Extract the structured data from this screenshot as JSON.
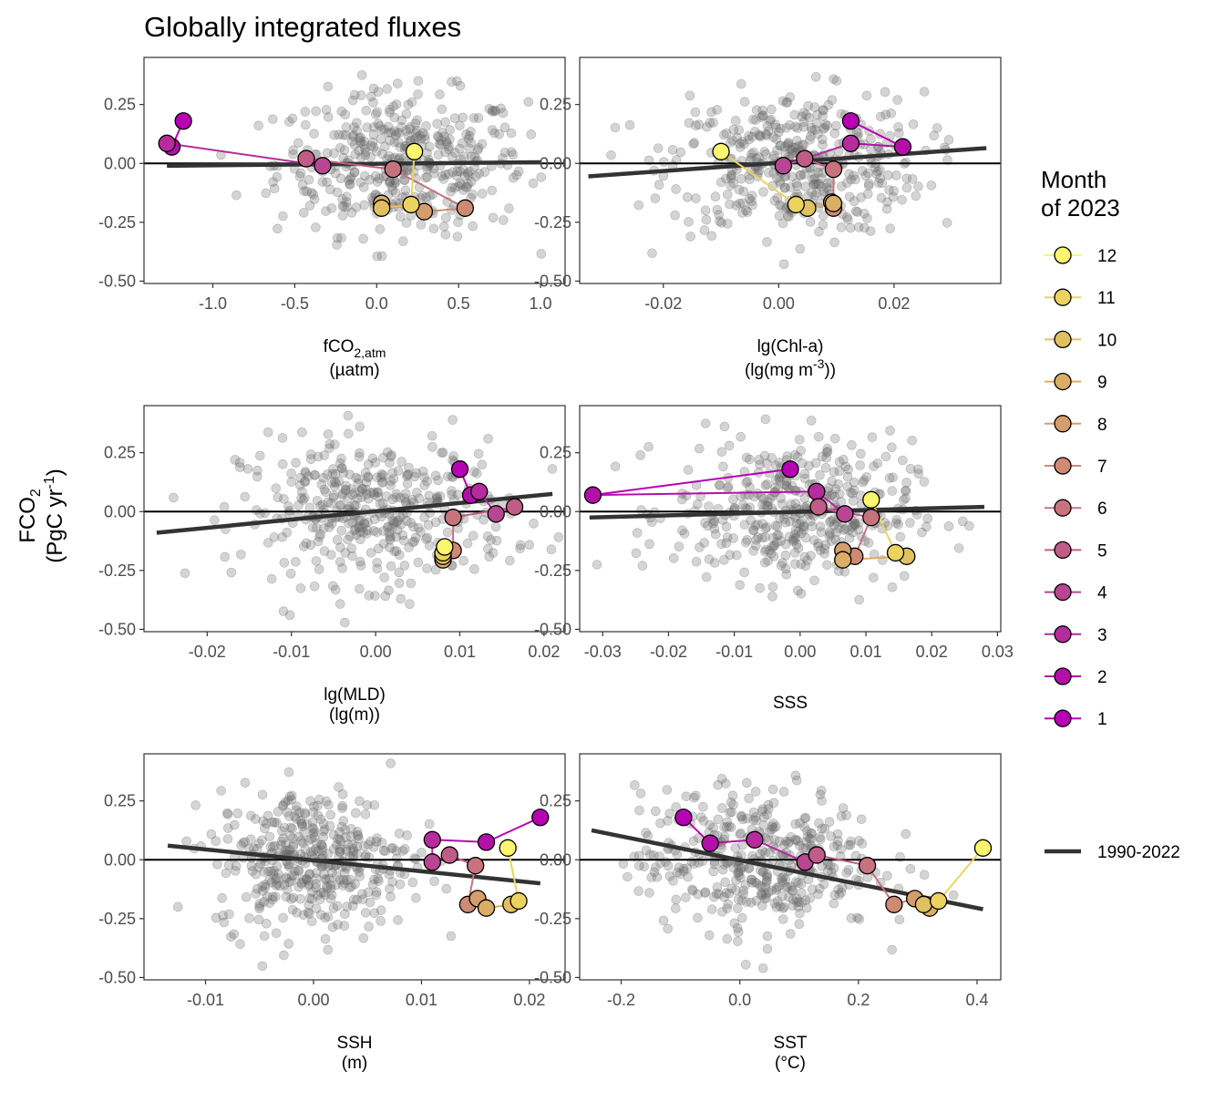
{
  "title": "Globally integrated fluxes",
  "ylabel": [
    "FCO",
    "2",
    "(PgC yr",
    "-1",
    ")"
  ],
  "legend": {
    "title_lines": [
      "Month",
      "of 2023"
    ],
    "months": [
      "12",
      "11",
      "10",
      "9",
      "8",
      "7",
      "6",
      "5",
      "4",
      "3",
      "2",
      "1"
    ],
    "line_label": "1990-2022"
  },
  "colors": {
    "scatter": "#666666",
    "fit_line": "#333333",
    "zero_line": "#000000",
    "month_palette": {
      "1": "#b800b5",
      "2": "#b210a9",
      "3": "#b62c9c",
      "4": "#b84693",
      "5": "#c05c88",
      "6": "#c7737e",
      "7": "#cf8a74",
      "8": "#d49e6c",
      "9": "#dbae66",
      "10": "#e0c060",
      "11": "#ead35e",
      "12": "#fbf66e"
    }
  },
  "chart_data": [
    {
      "type": "scatter",
      "panel": "fco2atm",
      "xlabel": [
        "fCO",
        "2,atm",
        "(µatm)"
      ],
      "ylabel": "FCO2 (PgC yr-1)",
      "xlim": [
        -1.42,
        1.15
      ],
      "ylim": [
        -0.51,
        0.45
      ],
      "x_ticks": [
        -1.0,
        -0.5,
        0.0,
        0.5,
        1.0
      ],
      "x_tick_labels": [
        "-1.0",
        "-0.5",
        "0.0",
        "0.5",
        "1.0"
      ],
      "y_ticks": [
        -0.5,
        -0.25,
        0,
        0.25
      ],
      "y_tick_labels": [
        "-0.50",
        "-0.25",
        "0.00",
        "0.25"
      ],
      "fit": {
        "x": [
          -1.28,
          1.0
        ],
        "y": [
          -0.01,
          0.005
        ]
      },
      "months_2023": [
        {
          "month": 1,
          "x": -1.18,
          "y": 0.18
        },
        {
          "month": 2,
          "x": -1.25,
          "y": 0.07
        },
        {
          "month": 3,
          "x": -1.28,
          "y": 0.085
        },
        {
          "month": 4,
          "x": -0.33,
          "y": -0.01
        },
        {
          "month": 5,
          "x": -0.43,
          "y": 0.02
        },
        {
          "month": 6,
          "x": 0.1,
          "y": -0.025
        },
        {
          "month": 7,
          "x": 0.54,
          "y": -0.19
        },
        {
          "month": 8,
          "x": 0.29,
          "y": -0.205
        },
        {
          "month": 9,
          "x": 0.03,
          "y": -0.17
        },
        {
          "month": 10,
          "x": 0.03,
          "y": -0.19
        },
        {
          "month": 11,
          "x": 0.21,
          "y": -0.175
        },
        {
          "month": 12,
          "x": 0.23,
          "y": 0.05
        }
      ],
      "cloud": {
        "center_x": 0.15,
        "spread_x": 0.38,
        "center_y": 0.0,
        "spread_y": 0.15
      }
    },
    {
      "type": "scatter",
      "panel": "chla",
      "xlabel": [
        "lg(Chl-a)",
        "(lg(mg m",
        "-3",
        "))"
      ],
      "ylabel": "FCO2 (PgC yr-1)",
      "xlim": [
        -0.0345,
        0.0385
      ],
      "ylim": [
        -0.51,
        0.45
      ],
      "x_ticks": [
        -0.02,
        0.0,
        0.02
      ],
      "x_tick_labels": [
        "-0.02",
        "0.00",
        "0.02"
      ],
      "y_ticks": [
        -0.5,
        -0.25,
        0,
        0.25
      ],
      "y_tick_labels": [
        "-0.50",
        "-0.25",
        "0.00",
        "0.25"
      ],
      "fit": {
        "x": [
          -0.033,
          0.036
        ],
        "y": [
          -0.055,
          0.065
        ]
      },
      "months_2023": [
        {
          "month": 1,
          "x": 0.0125,
          "y": 0.18
        },
        {
          "month": 2,
          "x": 0.0215,
          "y": 0.07
        },
        {
          "month": 3,
          "x": 0.0125,
          "y": 0.085
        },
        {
          "month": 4,
          "x": 0.0008,
          "y": -0.01
        },
        {
          "month": 5,
          "x": 0.0045,
          "y": 0.02
        },
        {
          "month": 6,
          "x": 0.0095,
          "y": -0.025
        },
        {
          "month": 7,
          "x": 0.0095,
          "y": -0.19
        },
        {
          "month": 8,
          "x": 0.0092,
          "y": -0.165
        },
        {
          "month": 9,
          "x": 0.0095,
          "y": -0.17
        },
        {
          "month": 10,
          "x": 0.005,
          "y": -0.19
        },
        {
          "month": 11,
          "x": 0.003,
          "y": -0.175
        },
        {
          "month": 12,
          "x": -0.01,
          "y": 0.05
        }
      ],
      "cloud": {
        "center_x": 0.003,
        "spread_x": 0.011,
        "center_y": 0.0,
        "spread_y": 0.15
      }
    },
    {
      "type": "scatter",
      "panel": "mld",
      "xlabel": [
        "lg(MLD)",
        "(lg(m))"
      ],
      "ylabel": "FCO2 (PgC yr-1)",
      "xlim": [
        -0.0275,
        0.0225
      ],
      "ylim": [
        -0.51,
        0.45
      ],
      "x_ticks": [
        -0.02,
        -0.01,
        0.0,
        0.01,
        0.02
      ],
      "x_tick_labels": [
        "-0.02",
        "-0.01",
        "0.00",
        "0.01",
        "0.02"
      ],
      "y_ticks": [
        -0.5,
        -0.25,
        0,
        0.25
      ],
      "y_tick_labels": [
        "-0.50",
        "-0.25",
        "0.00",
        "0.25"
      ],
      "fit": {
        "x": [
          -0.026,
          0.021
        ],
        "y": [
          -0.09,
          0.075
        ]
      },
      "months_2023": [
        {
          "month": 1,
          "x": 0.01,
          "y": 0.18
        },
        {
          "month": 2,
          "x": 0.0113,
          "y": 0.07
        },
        {
          "month": 3,
          "x": 0.0123,
          "y": 0.085
        },
        {
          "month": 4,
          "x": 0.0143,
          "y": -0.01
        },
        {
          "month": 5,
          "x": 0.0165,
          "y": 0.02
        },
        {
          "month": 6,
          "x": 0.0092,
          "y": -0.025
        },
        {
          "month": 7,
          "x": 0.0092,
          "y": -0.165
        },
        {
          "month": 8,
          "x": 0.008,
          "y": -0.19
        },
        {
          "month": 9,
          "x": 0.008,
          "y": -0.205
        },
        {
          "month": 10,
          "x": 0.008,
          "y": -0.19
        },
        {
          "month": 11,
          "x": 0.008,
          "y": -0.175
        },
        {
          "month": 12,
          "x": 0.0082,
          "y": -0.15
        }
      ],
      "cloud": {
        "center_x": 0.0,
        "spread_x": 0.008,
        "center_y": 0.0,
        "spread_y": 0.15
      }
    },
    {
      "type": "scatter",
      "panel": "sss",
      "xlabel": [
        "SSS"
      ],
      "ylabel": "FCO2 (PgC yr-1)",
      "xlim": [
        -0.0335,
        0.0305
      ],
      "ylim": [
        -0.51,
        0.45
      ],
      "x_ticks": [
        -0.03,
        -0.02,
        -0.01,
        0.0,
        0.01,
        0.02,
        0.03
      ],
      "x_tick_labels": [
        "-0.03",
        "-0.02",
        "-0.01",
        "0.00",
        "0.01",
        "0.02",
        "0.03"
      ],
      "y_ticks": [
        -0.5,
        -0.25,
        0,
        0.25
      ],
      "y_tick_labels": [
        "-0.50",
        "-0.25",
        "0.00",
        "0.25"
      ],
      "fit": {
        "x": [
          -0.032,
          0.028
        ],
        "y": [
          -0.025,
          0.02
        ]
      },
      "months_2023": [
        {
          "month": 1,
          "x": -0.0015,
          "y": 0.18
        },
        {
          "month": 2,
          "x": -0.0315,
          "y": 0.07
        },
        {
          "month": 3,
          "x": 0.0025,
          "y": 0.085
        },
        {
          "month": 4,
          "x": 0.0068,
          "y": -0.01
        },
        {
          "month": 5,
          "x": 0.0028,
          "y": 0.02
        },
        {
          "month": 6,
          "x": 0.0108,
          "y": -0.025
        },
        {
          "month": 7,
          "x": 0.0083,
          "y": -0.19
        },
        {
          "month": 8,
          "x": 0.0065,
          "y": -0.165
        },
        {
          "month": 9,
          "x": 0.0065,
          "y": -0.205
        },
        {
          "month": 10,
          "x": 0.0162,
          "y": -0.19
        },
        {
          "month": 11,
          "x": 0.0145,
          "y": -0.175
        },
        {
          "month": 12,
          "x": 0.0108,
          "y": 0.05
        }
      ],
      "cloud": {
        "center_x": -0.001,
        "spread_x": 0.009,
        "center_y": 0.0,
        "spread_y": 0.15
      }
    },
    {
      "type": "scatter",
      "panel": "ssh",
      "xlabel": [
        "SSH",
        "(m)"
      ],
      "ylabel": "FCO2 (PgC yr-1)",
      "xlim": [
        -0.0157,
        0.0233
      ],
      "ylim": [
        -0.51,
        0.45
      ],
      "x_ticks": [
        -0.01,
        0.0,
        0.01,
        0.02
      ],
      "x_tick_labels": [
        "-0.01",
        "0.00",
        "0.01",
        "0.02"
      ],
      "y_ticks": [
        -0.5,
        -0.25,
        0,
        0.25
      ],
      "y_tick_labels": [
        "-0.50",
        "-0.25",
        "0.00",
        "0.25"
      ],
      "fit": {
        "x": [
          -0.0135,
          0.021
        ],
        "y": [
          0.06,
          -0.1
        ]
      },
      "months_2023": [
        {
          "month": 1,
          "x": 0.021,
          "y": 0.18
        },
        {
          "month": 2,
          "x": 0.016,
          "y": 0.075
        },
        {
          "month": 3,
          "x": 0.011,
          "y": 0.085
        },
        {
          "month": 4,
          "x": 0.011,
          "y": -0.01
        },
        {
          "month": 5,
          "x": 0.0126,
          "y": 0.02
        },
        {
          "month": 6,
          "x": 0.015,
          "y": -0.025
        },
        {
          "month": 7,
          "x": 0.0143,
          "y": -0.19
        },
        {
          "month": 8,
          "x": 0.0152,
          "y": -0.165
        },
        {
          "month": 9,
          "x": 0.016,
          "y": -0.205
        },
        {
          "month": 10,
          "x": 0.0183,
          "y": -0.19
        },
        {
          "month": 11,
          "x": 0.019,
          "y": -0.175
        },
        {
          "month": 12,
          "x": 0.018,
          "y": 0.05
        }
      ],
      "cloud": {
        "center_x": 0.0,
        "spread_x": 0.0045,
        "center_y": 0.0,
        "spread_y": 0.15
      }
    },
    {
      "type": "scatter",
      "panel": "sst",
      "xlabel": [
        "SST",
        "(°C)"
      ],
      "ylabel": "FCO2 (PgC yr-1)",
      "xlim": [
        -0.27,
        0.44
      ],
      "ylim": [
        -0.51,
        0.45
      ],
      "x_ticks": [
        -0.2,
        0.0,
        0.2,
        0.4
      ],
      "x_tick_labels": [
        "-0.2",
        "0.0",
        "0.2",
        "0.4"
      ],
      "y_ticks": [
        -0.5,
        -0.25,
        0,
        0.25
      ],
      "y_tick_labels": [
        "-0.50",
        "-0.25",
        "0.00",
        "0.25"
      ],
      "fit": {
        "x": [
          -0.25,
          0.41
        ],
        "y": [
          0.125,
          -0.21
        ]
      },
      "months_2023": [
        {
          "month": 1,
          "x": -0.095,
          "y": 0.18
        },
        {
          "month": 2,
          "x": -0.05,
          "y": 0.07
        },
        {
          "month": 3,
          "x": 0.025,
          "y": 0.085
        },
        {
          "month": 4,
          "x": 0.11,
          "y": -0.01
        },
        {
          "month": 5,
          "x": 0.13,
          "y": 0.02
        },
        {
          "month": 6,
          "x": 0.215,
          "y": -0.025
        },
        {
          "month": 7,
          "x": 0.26,
          "y": -0.19
        },
        {
          "month": 8,
          "x": 0.295,
          "y": -0.165
        },
        {
          "month": 9,
          "x": 0.32,
          "y": -0.205
        },
        {
          "month": 10,
          "x": 0.31,
          "y": -0.19
        },
        {
          "month": 11,
          "x": 0.335,
          "y": -0.175
        },
        {
          "month": 12,
          "x": 0.41,
          "y": 0.05
        }
      ],
      "cloud": {
        "center_x": 0.03,
        "spread_x": 0.1,
        "center_y": 0.0,
        "spread_y": 0.15
      }
    }
  ]
}
